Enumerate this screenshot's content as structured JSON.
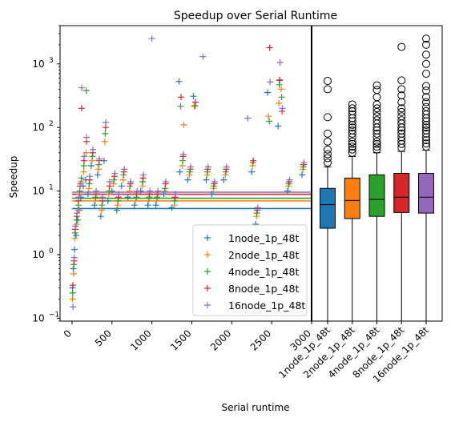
{
  "chart_data": {
    "type": "scatter",
    "title": "Speedup over Serial Runtime",
    "xlabel": "Serial runtime",
    "ylabel": "Speedup",
    "yscale": "log",
    "xlim": [
      -150,
      3000
    ],
    "ylim": [
      0.09,
      4000
    ],
    "xticks": [
      "0",
      "500",
      "1000",
      "1500",
      "2000",
      "2500",
      "3000"
    ],
    "xtick_values": [
      0,
      500,
      1000,
      1500,
      2000,
      2500,
      3000
    ],
    "yticks": [
      "10",
      "10",
      "10",
      "10",
      "10"
    ],
    "ytick_exponents": [
      "−1",
      "0",
      "1",
      "2",
      "3"
    ],
    "ytick_values": [
      0.1,
      1,
      10,
      100,
      1000
    ],
    "grid": false,
    "legend_position": "lower-center",
    "series": [
      {
        "name": "1node_1p_48t",
        "color": "#1f77b4",
        "mean": 5.3,
        "points": [
          [
            5,
            0.3
          ],
          [
            15,
            0.6
          ],
          [
            30,
            1.2
          ],
          [
            50,
            2
          ],
          [
            70,
            3.5
          ],
          [
            90,
            5
          ],
          [
            110,
            8
          ],
          [
            140,
            12
          ],
          [
            170,
            15
          ],
          [
            200,
            9
          ],
          [
            240,
            25
          ],
          [
            280,
            6
          ],
          [
            320,
            18
          ],
          [
            360,
            4
          ],
          [
            400,
            30
          ],
          [
            450,
            7
          ],
          [
            500,
            10
          ],
          [
            560,
            5
          ],
          [
            620,
            12
          ],
          [
            700,
            8
          ],
          [
            780,
            6
          ],
          [
            860,
            10
          ],
          [
            950,
            6
          ],
          [
            1050,
            6
          ],
          [
            1150,
            9
          ],
          [
            1250,
            5.5
          ],
          [
            1350,
            20
          ],
          [
            1340,
            530
          ],
          [
            1450,
            15
          ],
          [
            1520,
            310
          ],
          [
            1680,
            15
          ],
          [
            1750,
            9
          ],
          [
            1900,
            15
          ],
          [
            2250,
            20
          ],
          [
            2300,
            3
          ],
          [
            2450,
            355
          ],
          [
            2580,
            105
          ],
          [
            2600,
            560
          ],
          [
            2700,
            10
          ],
          [
            2880,
            18
          ]
        ]
      },
      {
        "name": "2node_1p_48t",
        "color": "#ff7f0e",
        "mean": 7.0,
        "points": [
          [
            5,
            0.2
          ],
          [
            20,
            0.5
          ],
          [
            35,
            1.8
          ],
          [
            55,
            3
          ],
          [
            75,
            5
          ],
          [
            95,
            9
          ],
          [
            115,
            14
          ],
          [
            145,
            20
          ],
          [
            175,
            40
          ],
          [
            210,
            11
          ],
          [
            250,
            30
          ],
          [
            290,
            7
          ],
          [
            330,
            22
          ],
          [
            370,
            5
          ],
          [
            410,
            60
          ],
          [
            460,
            9
          ],
          [
            520,
            13
          ],
          [
            570,
            6
          ],
          [
            640,
            15
          ],
          [
            720,
            10
          ],
          [
            800,
            7
          ],
          [
            880,
            12
          ],
          [
            960,
            7
          ],
          [
            1060,
            7
          ],
          [
            1160,
            10
          ],
          [
            1280,
            6
          ],
          [
            1380,
            25
          ],
          [
            1400,
            110
          ],
          [
            1470,
            18
          ],
          [
            1530,
            215
          ],
          [
            1690,
            18
          ],
          [
            1770,
            11
          ],
          [
            1920,
            18
          ],
          [
            2260,
            25
          ],
          [
            2310,
            4
          ],
          [
            2460,
            150
          ],
          [
            2590,
            240
          ],
          [
            2620,
            400
          ],
          [
            2710,
            12
          ],
          [
            2890,
            22
          ]
        ]
      },
      {
        "name": "4node_1p_48t",
        "color": "#2ca02c",
        "mean": 7.7,
        "points": [
          [
            8,
            0.25
          ],
          [
            22,
            0.7
          ],
          [
            38,
            2.2
          ],
          [
            58,
            3.5
          ],
          [
            78,
            6
          ],
          [
            98,
            10
          ],
          [
            118,
            16
          ],
          [
            148,
            25
          ],
          [
            178,
            380
          ],
          [
            215,
            13
          ],
          [
            255,
            35
          ],
          [
            295,
            8
          ],
          [
            335,
            26
          ],
          [
            375,
            6
          ],
          [
            415,
            80
          ],
          [
            465,
            10
          ],
          [
            525,
            15
          ],
          [
            575,
            7
          ],
          [
            645,
            18
          ],
          [
            725,
            12
          ],
          [
            805,
            8
          ],
          [
            885,
            14
          ],
          [
            965,
            8
          ],
          [
            1065,
            8
          ],
          [
            1165,
            11
          ],
          [
            1285,
            7
          ],
          [
            1385,
            30
          ],
          [
            1360,
            215
          ],
          [
            1475,
            20
          ],
          [
            1540,
            220
          ],
          [
            1695,
            20
          ],
          [
            1775,
            12
          ],
          [
            1925,
            20
          ],
          [
            2265,
            28
          ],
          [
            2315,
            4.5
          ],
          [
            2470,
            125
          ],
          [
            2595,
            470
          ],
          [
            2625,
            300
          ],
          [
            2715,
            13
          ],
          [
            2895,
            24
          ]
        ]
      },
      {
        "name": "8node_1p_48t",
        "color": "#d62728",
        "mean": 8.9,
        "points": [
          [
            10,
            0.33
          ],
          [
            25,
            0.8
          ],
          [
            40,
            2.5
          ],
          [
            60,
            4
          ],
          [
            80,
            7
          ],
          [
            100,
            12
          ],
          [
            120,
            200
          ],
          [
            150,
            30
          ],
          [
            180,
            60
          ],
          [
            220,
            15
          ],
          [
            260,
            40
          ],
          [
            300,
            9
          ],
          [
            340,
            30
          ],
          [
            380,
            7
          ],
          [
            420,
            100
          ],
          [
            470,
            12
          ],
          [
            530,
            17
          ],
          [
            580,
            8
          ],
          [
            650,
            20
          ],
          [
            730,
            13
          ],
          [
            810,
            9
          ],
          [
            890,
            16
          ],
          [
            970,
            9
          ],
          [
            1070,
            9
          ],
          [
            1170,
            13
          ],
          [
            1290,
            8
          ],
          [
            1390,
            35
          ],
          [
            1365,
            300
          ],
          [
            1480,
            22
          ],
          [
            1545,
            250
          ],
          [
            1700,
            22
          ],
          [
            1780,
            13
          ],
          [
            1930,
            22
          ],
          [
            2270,
            30
          ],
          [
            2320,
            5
          ],
          [
            2475,
            1800
          ],
          [
            2600,
            550
          ],
          [
            2630,
            180
          ],
          [
            2720,
            14
          ],
          [
            2900,
            26
          ]
        ]
      },
      {
        "name": "16node_1p_48t",
        "color": "#9467bd",
        "mean": 9.6,
        "points": [
          [
            12,
            0.15
          ],
          [
            28,
            0.9
          ],
          [
            42,
            2.8
          ],
          [
            62,
            4.5
          ],
          [
            82,
            8
          ],
          [
            102,
            13
          ],
          [
            122,
            420
          ],
          [
            152,
            35
          ],
          [
            182,
            70
          ],
          [
            222,
            17
          ],
          [
            262,
            45
          ],
          [
            302,
            10
          ],
          [
            342,
            32
          ],
          [
            382,
            8
          ],
          [
            422,
            120
          ],
          [
            472,
            14
          ],
          [
            535,
            19
          ],
          [
            585,
            9
          ],
          [
            655,
            22
          ],
          [
            735,
            14
          ],
          [
            815,
            10
          ],
          [
            895,
            18
          ],
          [
            975,
            10
          ],
          [
            1075,
            10
          ],
          [
            1175,
            14
          ],
          [
            1295,
            9
          ],
          [
            1395,
            38
          ],
          [
            1000,
            2500
          ],
          [
            1485,
            24
          ],
          [
            1640,
            1300
          ],
          [
            1705,
            24
          ],
          [
            1785,
            14
          ],
          [
            1935,
            24
          ],
          [
            2200,
            140
          ],
          [
            2325,
            5.5
          ],
          [
            2480,
            520
          ],
          [
            2605,
            1050
          ],
          [
            2635,
            200
          ],
          [
            2725,
            15
          ],
          [
            2905,
            28
          ]
        ]
      }
    ],
    "boxplot": {
      "categories": [
        "1node_1p_48t",
        "2node_1p_48t",
        "4node_1p_48t",
        "8node_1p_48t",
        "16node_1p_48t"
      ],
      "colors": [
        "#1f77b4",
        "#ff7f0e",
        "#2ca02c",
        "#d62728",
        "#9467bd"
      ],
      "stats": [
        {
          "whislo": 0.09,
          "q1": 2.6,
          "med": 6.1,
          "q3": 11,
          "whishi": 24,
          "fliers": [
            28,
            33,
            38,
            45,
            60,
            80,
            145,
            400,
            540
          ]
        },
        {
          "whislo": 0.09,
          "q1": 3.7,
          "med": 7.1,
          "q3": 16,
          "whishi": 35,
          "fliers": [
            40,
            45,
            50,
            55,
            60,
            70,
            80,
            90,
            100,
            110,
            125,
            140,
            160,
            180,
            200,
            230
          ]
        },
        {
          "whislo": 0.09,
          "q1": 4.0,
          "med": 7.4,
          "q3": 18,
          "whishi": 40,
          "fliers": [
            45,
            50,
            55,
            60,
            70,
            80,
            90,
            100,
            115,
            130,
            150,
            175,
            200,
            230,
            300,
            390,
            460
          ]
        },
        {
          "whislo": 0.09,
          "q1": 4.6,
          "med": 8.0,
          "q3": 19,
          "whishi": 42,
          "fliers": [
            48,
            55,
            62,
            70,
            80,
            90,
            100,
            115,
            130,
            150,
            175,
            200,
            250,
            320,
            400,
            550,
            1850
          ]
        },
        {
          "whislo": 0.09,
          "q1": 4.5,
          "med": 8.0,
          "q3": 19,
          "whishi": 44,
          "fliers": [
            50,
            56,
            63,
            70,
            80,
            90,
            100,
            110,
            125,
            140,
            160,
            180,
            210,
            250,
            300,
            380,
            450,
            700,
            1000,
            1400,
            2000,
            2500
          ]
        }
      ]
    }
  }
}
